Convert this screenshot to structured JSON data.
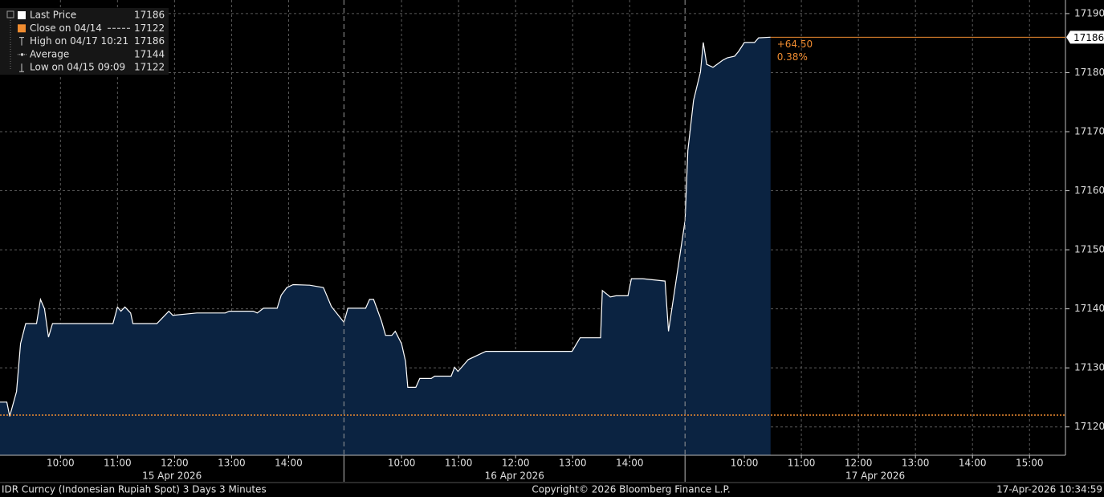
{
  "chart_data": {
    "type": "area",
    "line_color": "#ffffff",
    "fill_color": "#0b2341",
    "ylim": [
      17115.2,
      17192.3
    ],
    "yticks": [
      17120,
      17130,
      17140,
      17150,
      17160,
      17170,
      17180,
      17190
    ],
    "grid": true,
    "legend_position": "top-left",
    "legend": [
      {
        "name": "Last Price",
        "value": 17186,
        "color": "#ffffff"
      },
      {
        "name": "Close on 04/14",
        "value": 17122,
        "color": "#f08c30"
      },
      {
        "name": "High on 04/17 10:21",
        "value": 17186,
        "color": "#cccccc"
      },
      {
        "name": "Average",
        "value": 17144,
        "color": "#cccccc"
      },
      {
        "name": "Low on 04/15 09:09",
        "value": 17122,
        "color": "#cccccc"
      }
    ],
    "change": {
      "amount": "+64.50",
      "percent": "0.38%",
      "color": "#f08c30"
    },
    "panels": [
      {
        "date": "15 Apr 2026",
        "xlim": [
          8.94,
          14.97
        ],
        "xticks": [
          {
            "value": 10,
            "label": "10:00"
          },
          {
            "value": 11,
            "label": "11:00"
          },
          {
            "value": 12,
            "label": "12:00"
          },
          {
            "value": 13,
            "label": "13:00"
          },
          {
            "value": 14,
            "label": "14:00"
          }
        ],
        "x": [
          8.94,
          9.06,
          9.11,
          9.23,
          9.3,
          9.39,
          9.58,
          9.65,
          9.72,
          9.79,
          9.86,
          10.92,
          11.0,
          11.06,
          11.13,
          11.23,
          11.27,
          11.69,
          11.76,
          11.9,
          11.97,
          12.39,
          12.89,
          12.96,
          13.38,
          13.45,
          13.56,
          13.8,
          13.87,
          13.97,
          14.08,
          14.37,
          14.61,
          14.75,
          14.97
        ],
        "values": [
          17124.2,
          17124.2,
          17121.8,
          17126.0,
          17134.1,
          17137.5,
          17137.5,
          17141.6,
          17140.0,
          17135.2,
          17137.5,
          17137.5,
          17140.3,
          17139.6,
          17140.3,
          17139.3,
          17137.5,
          17137.5,
          17138.2,
          17139.6,
          17138.9,
          17139.3,
          17139.3,
          17139.6,
          17139.6,
          17139.3,
          17140.1,
          17140.1,
          17142.3,
          17143.6,
          17144.1,
          17144.0,
          17143.6,
          17140.4,
          17137.7
        ]
      },
      {
        "date": "16 Apr 2026",
        "xlim": [
          8.99,
          14.97
        ],
        "xticks": [
          {
            "value": 10,
            "label": "10:00"
          },
          {
            "value": 11,
            "label": "11:00"
          },
          {
            "value": 12,
            "label": "12:00"
          },
          {
            "value": 13,
            "label": "13:00"
          },
          {
            "value": 14,
            "label": "14:00"
          }
        ],
        "x": [
          8.99,
          9.06,
          9.37,
          9.44,
          9.51,
          9.65,
          9.72,
          9.83,
          9.89,
          10.0,
          10.07,
          10.11,
          10.25,
          10.32,
          10.52,
          10.58,
          10.87,
          10.93,
          10.99,
          11.17,
          11.41,
          11.48,
          12.99,
          13.13,
          13.49,
          13.52,
          13.66,
          13.76,
          13.97,
          14.03,
          14.23,
          14.62,
          14.68,
          14.97
        ],
        "values": [
          17137.7,
          17140.1,
          17140.1,
          17141.6,
          17141.6,
          17137.9,
          17135.5,
          17135.5,
          17136.2,
          17134.1,
          17131.1,
          17126.7,
          17126.7,
          17128.2,
          17128.2,
          17128.6,
          17128.6,
          17130.1,
          17129.4,
          17131.4,
          17132.5,
          17132.8,
          17132.8,
          17135.1,
          17135.1,
          17143.1,
          17142.0,
          17142.2,
          17142.2,
          17145.1,
          17145.1,
          17144.7,
          17136.2,
          17154.9
        ]
      },
      {
        "date": "17 Apr 2026",
        "xlim": [
          8.96,
          15.63
        ],
        "xticks": [
          {
            "value": 10,
            "label": "10:00"
          },
          {
            "value": 11,
            "label": "11:00"
          },
          {
            "value": 12,
            "label": "12:00"
          },
          {
            "value": 13,
            "label": "13:00"
          },
          {
            "value": 14,
            "label": "14:00"
          },
          {
            "value": 15,
            "label": "15:00"
          }
        ],
        "x": [
          8.96,
          9.01,
          9.11,
          9.23,
          9.28,
          9.34,
          9.45,
          9.62,
          9.7,
          9.83,
          9.9,
          10.0,
          10.18,
          10.25,
          10.46
        ],
        "values": [
          17154.9,
          17166.8,
          17175.3,
          17180.1,
          17185.1,
          17181.4,
          17180.9,
          17182.1,
          17182.5,
          17182.8,
          17183.6,
          17185.1,
          17185.1,
          17185.9,
          17186.0
        ]
      }
    ],
    "footer": {
      "left": "IDR Curncy (Indonesian Rupiah Spot) 3 Days 3 Minutes",
      "center": "Copyright© 2026 Bloomberg Finance L.P.",
      "right": "17-Apr-2026 10:34:59"
    }
  }
}
